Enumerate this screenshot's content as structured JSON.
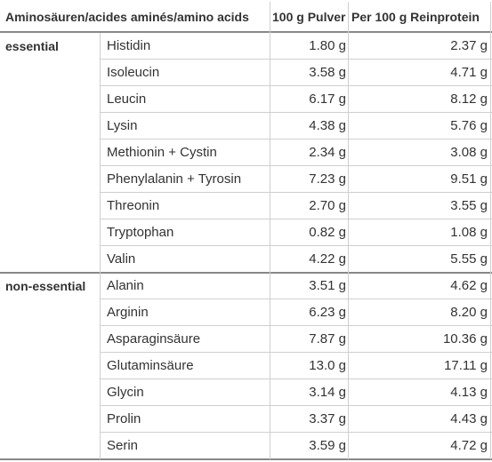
{
  "header": {
    "col1": "Aminosäuren/acides aminés/amino acids",
    "col2": "100 g Pulver",
    "col3": "Per 100 g Reinprotein"
  },
  "rows": [
    {
      "group": "essential",
      "name": "Histidin",
      "pulver": "1.80 g",
      "rein": "2.37 g"
    },
    {
      "group": "",
      "name": "Isoleucin",
      "pulver": "3.58 g",
      "rein": "4.71 g"
    },
    {
      "group": "",
      "name": "Leucin",
      "pulver": "6.17 g",
      "rein": "8.12 g"
    },
    {
      "group": "",
      "name": "Lysin",
      "pulver": "4.38 g",
      "rein": "5.76 g"
    },
    {
      "group": "",
      "name": "Methionin + Cystin",
      "pulver": "2.34 g",
      "rein": "3.08 g"
    },
    {
      "group": "",
      "name": "Phenylalanin + Tyrosin",
      "pulver": "7.23 g",
      "rein": "9.51 g"
    },
    {
      "group": "",
      "name": "Threonin",
      "pulver": "2.70 g",
      "rein": "3.55 g"
    },
    {
      "group": "",
      "name": "Tryptophan",
      "pulver": "0.82 g",
      "rein": "1.08 g"
    },
    {
      "group": "",
      "name": "Valin",
      "pulver": "4.22 g",
      "rein": "5.55 g"
    },
    {
      "group": "non-essential",
      "name": "Alanin",
      "pulver": "3.51 g",
      "rein": "4.62 g"
    },
    {
      "group": "",
      "name": "Arginin",
      "pulver": "6.23 g",
      "rein": "8.20 g"
    },
    {
      "group": "",
      "name": "Asparaginsäure",
      "pulver": "7.87 g",
      "rein": "10.36 g"
    },
    {
      "group": "",
      "name": "Glutaminsäure",
      "pulver": "13.0 g",
      "rein": "17.11 g"
    },
    {
      "group": "",
      "name": "Glycin",
      "pulver": "3.14 g",
      "rein": "4.13 g"
    },
    {
      "group": "",
      "name": "Prolin",
      "pulver": "3.37 g",
      "rein": "4.43 g"
    },
    {
      "group": "",
      "name": "Serin",
      "pulver": "3.59 g",
      "rein": "4.72 g"
    }
  ]
}
